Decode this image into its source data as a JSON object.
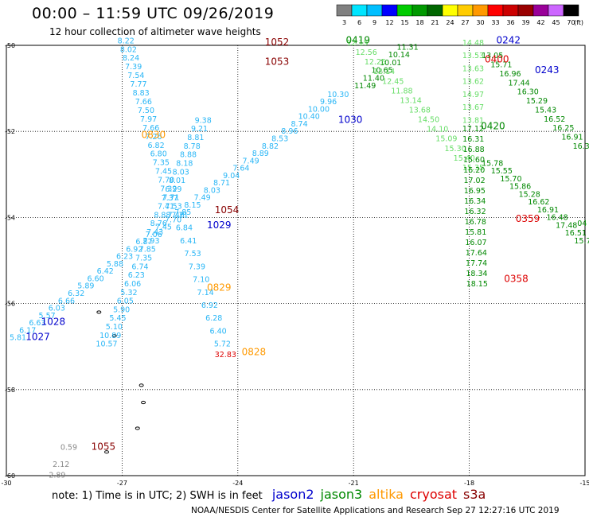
{
  "header": {
    "title": "00:00 – 11:59 UTC 09/26/2019",
    "subtitle": "12 hour collection of altimeter wave heights"
  },
  "colorbar": {
    "ticks": [
      "3",
      "6",
      "9",
      "12",
      "15",
      "18",
      "21",
      "24",
      "27",
      "30",
      "33",
      "36",
      "39",
      "42",
      "45",
      "70"
    ],
    "unit": "(ft)",
    "colors": [
      "#808080",
      "#00e5ff",
      "#00bfff",
      "#0000ff",
      "#00cc00",
      "#009900",
      "#006600",
      "#ffff00",
      "#ffcc00",
      "#ff9900",
      "#ff0000",
      "#cc0000",
      "#990000",
      "#990099",
      "#cc66ff",
      "#000000"
    ]
  },
  "axes": {
    "lat_labels": [
      "-50",
      "-52",
      "-54",
      "-56",
      "-58",
      "-60"
    ],
    "lon_labels": [
      "-30",
      "-27",
      "-24",
      "-21",
      "-18",
      "-15"
    ],
    "lat_range": [
      -60,
      -50
    ],
    "lon_range": [
      -30,
      -15
    ]
  },
  "notes": {
    "note": "note: 1) Time is in UTC; 2) SWH is in feet",
    "sats": [
      {
        "name": "jason2",
        "color": "#0000cc"
      },
      {
        "name": "jason3",
        "color": "#008800"
      },
      {
        "name": "altika",
        "color": "#ff9900"
      },
      {
        "name": "cryosat",
        "color": "#dd0000"
      },
      {
        "name": "s3a",
        "color": "#880000"
      }
    ]
  },
  "footer": "NOAA/NESDIS Center for Satellite Applications and Research   Sep 27 12:27:16 UTC 2019",
  "time_labels": [
    {
      "text": "1052",
      "color": "#880000",
      "lon": -23.3,
      "lat": -50.0
    },
    {
      "text": "1053",
      "color": "#880000",
      "lon": -23.3,
      "lat": -50.45
    },
    {
      "text": "0419",
      "color": "#008800",
      "lon": -21.2,
      "lat": -49.95
    },
    {
      "text": "0242",
      "color": "#0000cc",
      "lon": -17.3,
      "lat": -49.95
    },
    {
      "text": "0400",
      "color": "#dd0000",
      "lon": -17.6,
      "lat": -50.4
    },
    {
      "text": "0243",
      "color": "#0000cc",
      "lon": -16.3,
      "lat": -50.65
    },
    {
      "text": "1030",
      "color": "#0000cc",
      "lon": -21.4,
      "lat": -51.8
    },
    {
      "text": "0420",
      "color": "#008800",
      "lon": -17.7,
      "lat": -51.95
    },
    {
      "text": "0830",
      "color": "#ff9900",
      "lon": -26.5,
      "lat": -52.15
    },
    {
      "text": "1054",
      "color": "#880000",
      "lon": -24.6,
      "lat": -53.9
    },
    {
      "text": "1029",
      "color": "#0000cc",
      "lon": -24.8,
      "lat": -54.25
    },
    {
      "text": "0359",
      "color": "#dd0000",
      "lon": -16.8,
      "lat": -54.1
    },
    {
      "text": "0358",
      "color": "#dd0000",
      "lon": -17.1,
      "lat": -55.5
    },
    {
      "text": "0829",
      "color": "#ff9900",
      "lon": -24.8,
      "lat": -55.7
    },
    {
      "text": "1028",
      "color": "#0000cc",
      "lon": -29.1,
      "lat": -56.5
    },
    {
      "text": "1027",
      "color": "#0000cc",
      "lon": -29.5,
      "lat": -56.85
    },
    {
      "text": "0828",
      "color": "#ff9900",
      "lon": -23.9,
      "lat": -57.2
    },
    {
      "text": "1055",
      "color": "#880000",
      "lon": -27.8,
      "lat": -59.4
    }
  ],
  "tracks": [
    {
      "name": "altika-descending",
      "color": "#29b6f6",
      "start": [
        -26.9,
        -49.95
      ],
      "end": [
        -25.6,
        -54.0
      ],
      "values": [
        "8.22",
        "8.02",
        "8.24",
        "7.39",
        "7.54",
        "7.77",
        "8.83",
        "7.66",
        "7.50",
        "7.97",
        "7.66",
        "7.26",
        "6.82",
        "6.80",
        "7.35",
        "7.45",
        "7.70",
        "7.39",
        "7.71",
        "7.53",
        "7.48"
      ]
    },
    {
      "name": "altika-ascending",
      "color": "#29b6f6",
      "start": [
        -25.5,
        -54.0
      ],
      "end": [
        -24.4,
        -57.0
      ],
      "values": [
        "7.71",
        "6.84",
        "6.41",
        "7.53",
        "7.39",
        "7.10",
        "7.14",
        "6.92",
        "6.28",
        "6.40",
        "5.72"
      ]
    },
    {
      "name": "jason2-track",
      "color": "#29b6f6",
      "start": [
        -29.7,
        -56.85
      ],
      "end": [
        -21.4,
        -51.2
      ],
      "values": [
        "5.81",
        "6.17",
        "6.63",
        "5.57",
        "6.03",
        "6.66",
        "6.32",
        "5.89",
        "6.60",
        "6.42",
        "5.88",
        "6.23",
        "6.92",
        "6.87",
        "7.06",
        "7.45",
        "7.70",
        "7.85",
        "8.15",
        "7.49",
        "8.03",
        "8.71",
        "9.04",
        "7.64",
        "7.49",
        "8.89",
        "8.82",
        "8.53",
        "8.96",
        "8.74",
        "10.40",
        "10.00",
        "9.96",
        "10.30"
      ]
    },
    {
      "name": "s3a-track",
      "color": "#29b6f6",
      "start": [
        -27.4,
        -57.0
      ],
      "end": [
        -24.9,
        -51.8
      ],
      "values": [
        "10.57",
        "10.89",
        "5.10",
        "5.45",
        "5.90",
        "6.05",
        "5.32",
        "6.06",
        "6.23",
        "6.74",
        "7.35",
        "7.85",
        "7.93",
        "7.43",
        "8.76",
        "8.88",
        "7.41",
        "7.37",
        "6.29",
        "8.01",
        "8.03",
        "8.18",
        "8.88",
        "8.78",
        "8.81",
        "9.21",
        "9.38"
      ]
    },
    {
      "name": "jason3-upper",
      "color": "#008800",
      "start": [
        -19.6,
        -50.1
      ],
      "end": [
        -20.7,
        -51.0
      ],
      "values": [
        "11.31",
        "10.14",
        "10.01",
        "10.65",
        "11.40",
        "11.49"
      ]
    },
    {
      "name": "jason3-descending",
      "color": "#66dd66",
      "start": [
        -20.9,
        -50.0
      ],
      "end": [
        -17.9,
        -52.9
      ],
      "values": [
        "12.15",
        "12.56",
        "12.25",
        "12.14",
        "12.45",
        "11.88",
        "13.14",
        "13.68",
        "14.50",
        "14.10",
        "15.09",
        "15.30",
        "15.40",
        "15.35"
      ]
    },
    {
      "name": "cryosat-left",
      "color": "#008800",
      "start": [
        -17.9,
        -52.0
      ],
      "end": [
        -17.8,
        -55.6
      ],
      "values": [
        "17.12",
        "16.31",
        "16.88",
        "15.60",
        "16.20",
        "17.02",
        "16.95",
        "16.34",
        "16.32",
        "16.78",
        "15.81",
        "16.07",
        "17.64",
        "17.74",
        "18.34",
        "18.15"
      ]
    },
    {
      "name": "cryosat-upper",
      "color": "#66dd66",
      "start": [
        -17.9,
        -50.0
      ],
      "end": [
        -17.9,
        -51.8
      ],
      "values": [
        "14.48",
        "13.53",
        "13.63",
        "13.62",
        "14.97",
        "13.67",
        "13.81"
      ]
    },
    {
      "name": "cryosat-right",
      "color": "#008800",
      "start": [
        -17.4,
        -52.8
      ],
      "end": [
        -15.0,
        -54.6
      ],
      "values": [
        "15.78",
        "15.55",
        "15.70",
        "15.86",
        "15.28",
        "16.62",
        "16.91",
        "16.48",
        "17.48",
        "16.51",
        "15.77"
      ]
    },
    {
      "name": "s3a-right",
      "color": "#008800",
      "start": [
        -17.4,
        -50.3
      ],
      "end": [
        -15.1,
        -52.4
      ],
      "values": [
        "13.05",
        "15.71",
        "16.96",
        "17.44",
        "16.30",
        "15.29",
        "15.43",
        "16.52",
        "16.25",
        "16.91",
        "16.3"
      ]
    }
  ],
  "misc_values": [
    {
      "text": "0.59",
      "color": "#888888",
      "lon": -28.6,
      "lat": -59.4
    },
    {
      "text": "2.12",
      "color": "#888888",
      "lon": -28.8,
      "lat": -59.8
    },
    {
      "text": "2.89",
      "color": "#888888",
      "lon": -28.9,
      "lat": -60.05
    },
    {
      "text": "32.83",
      "color": "#dd0000",
      "lon": -24.6,
      "lat": -57.25
    },
    {
      "text": "04",
      "color": "#008800",
      "lon": -15.2,
      "lat": -54.2
    }
  ],
  "islands": [
    {
      "name": "island-1",
      "lon": -27.6,
      "lat": -56.2
    },
    {
      "name": "island-2",
      "lon": -27.2,
      "lat": -56.75
    },
    {
      "name": "island-3",
      "lon": -26.5,
      "lat": -57.9
    },
    {
      "name": "island-4",
      "lon": -26.45,
      "lat": -58.3
    },
    {
      "name": "island-5",
      "lon": -26.6,
      "lat": -58.9
    },
    {
      "name": "island-6",
      "lon": -27.4,
      "lat": -59.45
    }
  ]
}
